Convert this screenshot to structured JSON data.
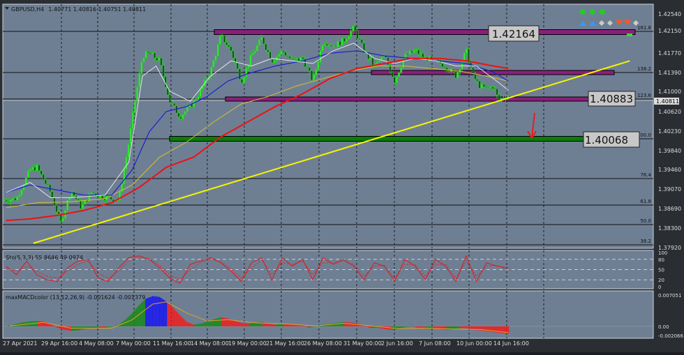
{
  "symbol_line": {
    "symbol": "GBPUSD,H4",
    "ohlc": "1.40771 1.40816 1.40751 1.40811"
  },
  "price_labels": [
    "1.42540",
    "1.42150",
    "1.41770",
    "1.41390",
    "1.41000",
    "1.40620",
    "1.40230",
    "1.39840",
    "1.39460",
    "1.39070",
    "1.38690",
    "1.38300",
    "1.37920"
  ],
  "current_price": "1.40811",
  "boxes": {
    "top": "1.42164",
    "mid": "1.40883",
    "low": "1.40068"
  },
  "fib_labels": [
    "161.8",
    "138.2",
    "123.6",
    "100.0",
    "76.4",
    "61.8",
    "50.0",
    "38.2"
  ],
  "stoch": {
    "label": "Sto(5,3,3) 55.8646 49.0974",
    "levels": [
      "100",
      "80",
      "50",
      "20",
      "0"
    ]
  },
  "macd": {
    "label": "maxMACDcolor (13,12,26,9) -0.001624 -0.001379",
    "levels": [
      "0.007051",
      "0.00",
      "-0.002066"
    ]
  },
  "x_labels": [
    "27 Apr 2021",
    "29 Apr 16:00",
    "4 May 08:00",
    "7 May 00:00",
    "11 May 16:00",
    "14 May 08:00",
    "19 May 00:00",
    "21 May 16:00",
    "26 May 08:00",
    "31 May 00:00",
    "2 Jun 16:00",
    "7 Jun 08:00",
    "10 Jun 00:00",
    "14 Jun 16:00"
  ],
  "colors": {
    "background": "#6e7f94",
    "bull": "#33dd33",
    "bear": "#33dd33",
    "ma_fast": "#e6e6e6",
    "ma_mid": "#1a22cc",
    "ma_slow": "#d8c030",
    "ma_red": "#ee1111",
    "trend": "#f5f500",
    "band": "#8a1f7a",
    "band_low": "#0c7a0c",
    "macd_blue": "#1a1aee",
    "macd_green": "#1a8a1a",
    "macd_red": "#ee2020"
  },
  "chart_data": {
    "type": "candlestick",
    "ylim": [
      1.378,
      1.4262
    ],
    "x_range": [
      0,
      760
    ],
    "anchors": [
      [
        0,
        1.3875
      ],
      [
        20,
        1.3878
      ],
      [
        40,
        1.3935
      ],
      [
        50,
        1.394
      ],
      [
        60,
        1.3915
      ],
      [
        70,
        1.389
      ],
      [
        85,
        1.383
      ],
      [
        100,
        1.3895
      ],
      [
        115,
        1.386
      ],
      [
        130,
        1.389
      ],
      [
        150,
        1.388
      ],
      [
        170,
        1.3875
      ],
      [
        185,
        1.399
      ],
      [
        195,
        1.408
      ],
      [
        205,
        1.416
      ],
      [
        215,
        1.4165
      ],
      [
        230,
        1.415
      ],
      [
        245,
        1.407
      ],
      [
        260,
        1.404
      ],
      [
        275,
        1.406
      ],
      [
        290,
        1.409
      ],
      [
        305,
        1.413
      ],
      [
        320,
        1.42
      ],
      [
        335,
        1.417
      ],
      [
        350,
        1.411
      ],
      [
        365,
        1.416
      ],
      [
        380,
        1.4195
      ],
      [
        395,
        1.415
      ],
      [
        410,
        1.417
      ],
      [
        425,
        1.415
      ],
      [
        440,
        1.4155
      ],
      [
        455,
        1.411
      ],
      [
        470,
        1.419
      ],
      [
        485,
        1.418
      ],
      [
        500,
        1.419
      ],
      [
        515,
        1.4215
      ],
      [
        530,
        1.417
      ],
      [
        545,
        1.414
      ],
      [
        560,
        1.416
      ],
      [
        575,
        1.411
      ],
      [
        590,
        1.416
      ],
      [
        605,
        1.417
      ],
      [
        620,
        1.4155
      ],
      [
        635,
        1.415
      ],
      [
        650,
        1.414
      ],
      [
        665,
        1.412
      ],
      [
        680,
        1.417
      ],
      [
        690,
        1.412
      ],
      [
        700,
        1.41
      ],
      [
        710,
        1.4095
      ],
      [
        720,
        1.41
      ],
      [
        728,
        1.407
      ],
      [
        735,
        1.408
      ],
      [
        742,
        1.4081
      ]
    ],
    "ma_fast": [
      [
        5,
        1.389
      ],
      [
        40,
        1.391
      ],
      [
        70,
        1.388
      ],
      [
        100,
        1.388
      ],
      [
        150,
        1.3885
      ],
      [
        185,
        1.395
      ],
      [
        205,
        1.412
      ],
      [
        225,
        1.414
      ],
      [
        245,
        1.409
      ],
      [
        275,
        1.407
      ],
      [
        305,
        1.412
      ],
      [
        335,
        1.415
      ],
      [
        365,
        1.414
      ],
      [
        395,
        1.4155
      ],
      [
        425,
        1.415
      ],
      [
        455,
        1.4145
      ],
      [
        485,
        1.417
      ],
      [
        515,
        1.4185
      ],
      [
        545,
        1.4155
      ],
      [
        575,
        1.4145
      ],
      [
        605,
        1.4155
      ],
      [
        635,
        1.415
      ],
      [
        665,
        1.414
      ],
      [
        695,
        1.414
      ],
      [
        725,
        1.411
      ],
      [
        742,
        1.4092
      ]
    ],
    "ma_mid": [
      [
        5,
        1.389
      ],
      [
        40,
        1.3905
      ],
      [
        80,
        1.3895
      ],
      [
        120,
        1.3885
      ],
      [
        160,
        1.3885
      ],
      [
        190,
        1.3935
      ],
      [
        215,
        1.401
      ],
      [
        240,
        1.405
      ],
      [
        270,
        1.406
      ],
      [
        300,
        1.408
      ],
      [
        330,
        1.411
      ],
      [
        360,
        1.4125
      ],
      [
        400,
        1.414
      ],
      [
        440,
        1.415
      ],
      [
        480,
        1.4165
      ],
      [
        520,
        1.417
      ],
      [
        560,
        1.416
      ],
      [
        600,
        1.4155
      ],
      [
        640,
        1.415
      ],
      [
        680,
        1.4145
      ],
      [
        720,
        1.4128
      ],
      [
        742,
        1.411
      ]
    ],
    "ma_slow": [
      [
        5,
        1.386
      ],
      [
        50,
        1.387
      ],
      [
        100,
        1.3872
      ],
      [
        150,
        1.3878
      ],
      [
        190,
        1.3905
      ],
      [
        230,
        1.396
      ],
      [
        270,
        1.399
      ],
      [
        310,
        1.403
      ],
      [
        350,
        1.4065
      ],
      [
        390,
        1.408
      ],
      [
        430,
        1.41
      ],
      [
        470,
        1.4115
      ],
      [
        510,
        1.413
      ],
      [
        550,
        1.414
      ],
      [
        590,
        1.414
      ],
      [
        630,
        1.4135
      ],
      [
        670,
        1.413
      ],
      [
        710,
        1.412
      ],
      [
        742,
        1.411
      ]
    ],
    "ma_red": [
      [
        5,
        1.3835
      ],
      [
        40,
        1.3838
      ],
      [
        80,
        1.3845
      ],
      [
        120,
        1.3855
      ],
      [
        160,
        1.387
      ],
      [
        200,
        1.39
      ],
      [
        240,
        1.394
      ],
      [
        280,
        1.396
      ],
      [
        320,
        1.4
      ],
      [
        360,
        1.403
      ],
      [
        400,
        1.406
      ],
      [
        440,
        1.4085
      ],
      [
        480,
        1.4115
      ],
      [
        520,
        1.4135
      ],
      [
        560,
        1.4145
      ],
      [
        600,
        1.4155
      ],
      [
        640,
        1.4155
      ],
      [
        680,
        1.415
      ],
      [
        720,
        1.414
      ],
      [
        742,
        1.4135
      ]
    ],
    "trendline": [
      [
        45,
        1.379
      ],
      [
        920,
        1.415
      ]
    ],
    "stoch_main": [
      [
        5,
        60
      ],
      [
        20,
        35
      ],
      [
        35,
        75
      ],
      [
        50,
        35
      ],
      [
        65,
        20
      ],
      [
        80,
        15
      ],
      [
        95,
        55
      ],
      [
        110,
        75
      ],
      [
        125,
        80
      ],
      [
        140,
        25
      ],
      [
        155,
        15
      ],
      [
        170,
        55
      ],
      [
        185,
        85
      ],
      [
        200,
        90
      ],
      [
        215,
        80
      ],
      [
        230,
        55
      ],
      [
        245,
        25
      ],
      [
        260,
        10
      ],
      [
        275,
        65
      ],
      [
        290,
        75
      ],
      [
        305,
        85
      ],
      [
        320,
        70
      ],
      [
        335,
        45
      ],
      [
        350,
        15
      ],
      [
        365,
        70
      ],
      [
        380,
        85
      ],
      [
        395,
        20
      ],
      [
        410,
        85
      ],
      [
        425,
        60
      ],
      [
        440,
        80
      ],
      [
        455,
        20
      ],
      [
        470,
        85
      ],
      [
        485,
        65
      ],
      [
        500,
        80
      ],
      [
        515,
        60
      ],
      [
        530,
        20
      ],
      [
        545,
        70
      ],
      [
        560,
        60
      ],
      [
        575,
        15
      ],
      [
        590,
        80
      ],
      [
        605,
        60
      ],
      [
        620,
        20
      ],
      [
        635,
        80
      ],
      [
        650,
        60
      ],
      [
        665,
        15
      ],
      [
        680,
        90
      ],
      [
        695,
        15
      ],
      [
        710,
        70
      ],
      [
        725,
        60
      ],
      [
        742,
        55
      ]
    ],
    "stoch_signal": [
      [
        5,
        55
      ],
      [
        20,
        45
      ],
      [
        35,
        60
      ],
      [
        50,
        45
      ],
      [
        65,
        30
      ],
      [
        80,
        25
      ],
      [
        95,
        45
      ],
      [
        110,
        65
      ],
      [
        125,
        75
      ],
      [
        140,
        40
      ],
      [
        155,
        25
      ],
      [
        170,
        45
      ],
      [
        185,
        75
      ],
      [
        200,
        85
      ],
      [
        215,
        82
      ],
      [
        230,
        62
      ],
      [
        245,
        35
      ],
      [
        260,
        20
      ],
      [
        275,
        50
      ],
      [
        290,
        70
      ],
      [
        305,
        80
      ],
      [
        320,
        72
      ],
      [
        335,
        52
      ],
      [
        350,
        25
      ],
      [
        365,
        55
      ],
      [
        380,
        78
      ],
      [
        395,
        35
      ],
      [
        410,
        70
      ],
      [
        425,
        65
      ],
      [
        440,
        75
      ],
      [
        455,
        35
      ],
      [
        470,
        70
      ],
      [
        485,
        70
      ],
      [
        500,
        75
      ],
      [
        515,
        65
      ],
      [
        530,
        30
      ],
      [
        545,
        60
      ],
      [
        560,
        62
      ],
      [
        575,
        25
      ],
      [
        590,
        65
      ],
      [
        605,
        65
      ],
      [
        620,
        30
      ],
      [
        635,
        65
      ],
      [
        650,
        65
      ],
      [
        665,
        25
      ],
      [
        680,
        75
      ],
      [
        695,
        30
      ],
      [
        710,
        60
      ],
      [
        725,
        62
      ],
      [
        742,
        49
      ]
    ],
    "macd_hist": [
      [
        10,
        0.0002
      ],
      [
        20,
        0.0006
      ],
      [
        30,
        0.0009
      ],
      [
        40,
        0.0011
      ],
      [
        50,
        0.0012
      ],
      [
        60,
        0.0011
      ],
      [
        70,
        0.0006
      ],
      [
        80,
        -0.0003
      ],
      [
        90,
        -0.0008
      ],
      [
        100,
        -0.001
      ],
      [
        110,
        -0.0009
      ],
      [
        120,
        -0.0006
      ],
      [
        130,
        -0.0004
      ],
      [
        140,
        -0.0003
      ],
      [
        150,
        -0.0003
      ],
      [
        160,
        -0.0001
      ],
      [
        170,
        0.0004
      ],
      [
        180,
        0.0015
      ],
      [
        190,
        0.003
      ],
      [
        200,
        0.0048
      ],
      [
        210,
        0.0062
      ],
      [
        220,
        0.0068
      ],
      [
        230,
        0.0066
      ],
      [
        240,
        0.0056
      ],
      [
        250,
        0.0042
      ],
      [
        260,
        0.0025
      ],
      [
        270,
        0.001
      ],
      [
        280,
        0.0004
      ],
      [
        290,
        0.0006
      ],
      [
        300,
        0.001
      ],
      [
        310,
        0.0016
      ],
      [
        320,
        0.002
      ],
      [
        330,
        0.0018
      ],
      [
        340,
        0.0012
      ],
      [
        350,
        0.0008
      ],
      [
        360,
        0.0006
      ],
      [
        370,
        0.0008
      ],
      [
        380,
        0.001
      ],
      [
        390,
        0.0006
      ],
      [
        400,
        0.0004
      ],
      [
        410,
        0.0006
      ],
      [
        420,
        0.0005
      ],
      [
        430,
        0.0003
      ],
      [
        440,
        0.0002
      ],
      [
        450,
        -0.0003
      ],
      [
        460,
        0.0001
      ],
      [
        470,
        0.0004
      ],
      [
        480,
        0.0006
      ],
      [
        490,
        0.0008
      ],
      [
        500,
        0.001
      ],
      [
        510,
        0.0009
      ],
      [
        520,
        0.0007
      ],
      [
        530,
        0.0002
      ],
      [
        540,
        -0.0004
      ],
      [
        550,
        -0.0003
      ],
      [
        560,
        -0.0006
      ],
      [
        570,
        -0.0008
      ],
      [
        580,
        -0.0006
      ],
      [
        590,
        -0.0002
      ],
      [
        600,
        0.0001
      ],
      [
        610,
        -0.0004
      ],
      [
        620,
        -0.0006
      ],
      [
        630,
        -0.0005
      ],
      [
        640,
        -0.0006
      ],
      [
        650,
        -0.0008
      ],
      [
        660,
        -0.0007
      ],
      [
        670,
        -0.0004
      ],
      [
        680,
        -0.0004
      ],
      [
        690,
        -0.0008
      ],
      [
        700,
        -0.0009
      ],
      [
        710,
        -0.0011
      ],
      [
        720,
        -0.0013
      ],
      [
        730,
        -0.0015
      ],
      [
        740,
        -0.0016
      ]
    ],
    "macd_signal": [
      [
        10,
        0.0001
      ],
      [
        60,
        0.0009
      ],
      [
        100,
        -0.0004
      ],
      [
        160,
        -0.0004
      ],
      [
        190,
        0.0015
      ],
      [
        220,
        0.005
      ],
      [
        240,
        0.0055
      ],
      [
        270,
        0.003
      ],
      [
        300,
        0.0012
      ],
      [
        330,
        0.0015
      ],
      [
        370,
        0.0008
      ],
      [
        420,
        0.0005
      ],
      [
        460,
        0.0001
      ],
      [
        500,
        0.0007
      ],
      [
        540,
        0.0001
      ],
      [
        580,
        -0.0005
      ],
      [
        620,
        -0.0004
      ],
      [
        660,
        -0.0006
      ],
      [
        700,
        -0.0007
      ],
      [
        742,
        -0.0014
      ]
    ]
  }
}
